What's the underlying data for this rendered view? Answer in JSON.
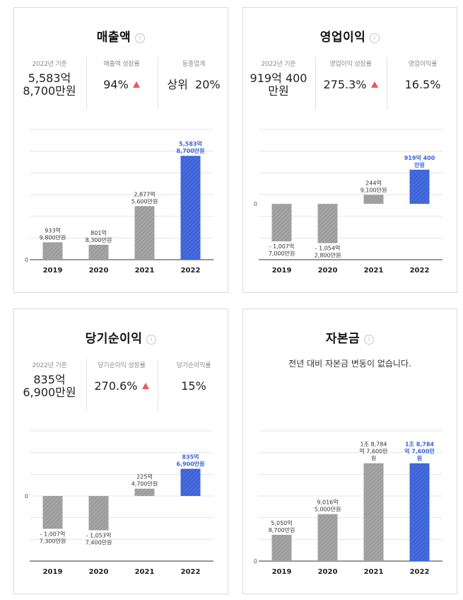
{
  "cards": [
    {
      "title": "매출액",
      "info_icon": "info-icon",
      "stats": [
        {
          "label": "2022년 기준",
          "value": "5,583억\n8,700만원"
        },
        {
          "label": "매출액 성장률",
          "value": "94%",
          "trend": "up"
        },
        {
          "label": "동종업계",
          "value": "상위  20%"
        }
      ]
    },
    {
      "title": "영업이익",
      "info_icon": "info-icon",
      "stats": [
        {
          "label": "2022년 기준",
          "value": "919억 400\n만원"
        },
        {
          "label": "영업이익 성장률",
          "value": "275.3%",
          "trend": "up"
        },
        {
          "label": "영업이익률",
          "value": "16.5%"
        }
      ]
    },
    {
      "title": "당기순이익",
      "info_icon": "info-icon",
      "stats": [
        {
          "label": "2022년 기준",
          "value": "835억\n6,900만원"
        },
        {
          "label": "당기순이익 성장률",
          "value": "270.6%",
          "trend": "up"
        },
        {
          "label": "당기순이익률",
          "value": "15%"
        }
      ]
    },
    {
      "title": "자본금",
      "info_icon": "info-icon",
      "message": "전년 대비 자본금 변동이 없습니다."
    }
  ],
  "colors": {
    "past_bar": "#9c9c9c",
    "current_bar": "#3d63d8",
    "current_label": "#3d63d8",
    "trend_up": "#e8595b",
    "grid": "#e4e4e4",
    "axis": "#333333"
  },
  "chart_data": [
    {
      "type": "bar",
      "title": "매출액",
      "unit": "억원",
      "categories": [
        "2019",
        "2020",
        "2021",
        "2022"
      ],
      "values": [
        933.98,
        801.83,
        2877.56,
        5583.87
      ],
      "labels": [
        "933억\n9,800만원",
        "801억\n8,300만원",
        "2,877억\n5,600만원",
        "5,583억\n8,700만원"
      ],
      "ylim": [
        0,
        7000
      ],
      "zero_label": "0",
      "highlight_index": 3
    },
    {
      "type": "bar",
      "title": "영업이익",
      "unit": "억원",
      "categories": [
        "2019",
        "2020",
        "2021",
        "2022"
      ],
      "values": [
        -1007.7,
        -1054.28,
        244.91,
        919.04
      ],
      "labels": [
        "- 1,007억\n7,000만원",
        "- 1,054억\n2,800만원",
        "244억\n9,100만원",
        "919억 400\n만원"
      ],
      "ylim": [
        -1500,
        2000
      ],
      "zero_label": "0",
      "highlight_index": 3
    },
    {
      "type": "bar",
      "title": "당기순이익",
      "unit": "억원",
      "categories": [
        "2019",
        "2020",
        "2021",
        "2022"
      ],
      "values": [
        -1007.73,
        -1053.74,
        225.47,
        835.69
      ],
      "labels": [
        "- 1,007억\n7,300만원",
        "- 1,053억\n7,400만원",
        "225억\n4,700만원",
        "835억\n6,900만원"
      ],
      "ylim": [
        -2000,
        2000
      ],
      "zero_label": "0",
      "highlight_index": 3
    },
    {
      "type": "bar",
      "title": "자본금",
      "unit": "억원",
      "categories": [
        "2019",
        "2020",
        "2021",
        "2022"
      ],
      "values": [
        5050.87,
        9016.5,
        18784.76,
        18784.76
      ],
      "labels": [
        "5,050억\n8,700만원",
        "9,016억\n5,000만원",
        "1조 8,784\n억 7,600만\n원",
        "1조 8,784\n억 7,600만\n원"
      ],
      "ylim": [
        0,
        25000
      ],
      "zero_label": "0",
      "highlight_index": 3
    }
  ]
}
